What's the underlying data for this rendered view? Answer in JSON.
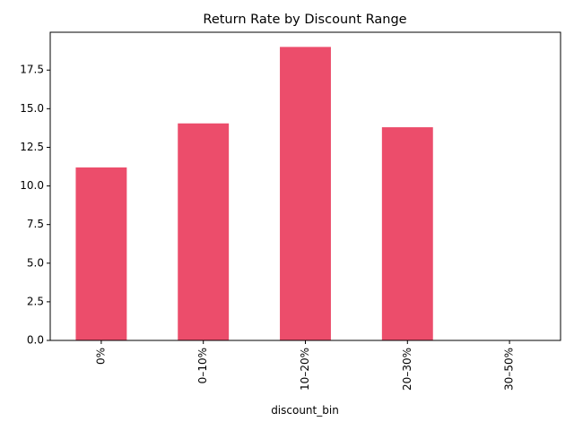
{
  "chart_data": {
    "type": "bar",
    "title": "Return Rate by Discount Range",
    "xlabel": "discount_bin",
    "ylabel": "",
    "categories": [
      "0%",
      "0–10%",
      "10–20%",
      "20–30%",
      "30–50%"
    ],
    "values": [
      11.2,
      14.05,
      19.0,
      13.8,
      0
    ],
    "ylim": [
      0,
      19.95
    ],
    "yticks": [
      "0.0",
      "2.5",
      "5.0",
      "7.5",
      "10.0",
      "12.5",
      "15.0",
      "17.5"
    ],
    "grid": false,
    "legend": "none",
    "bar_color": "#ec4d6b"
  }
}
